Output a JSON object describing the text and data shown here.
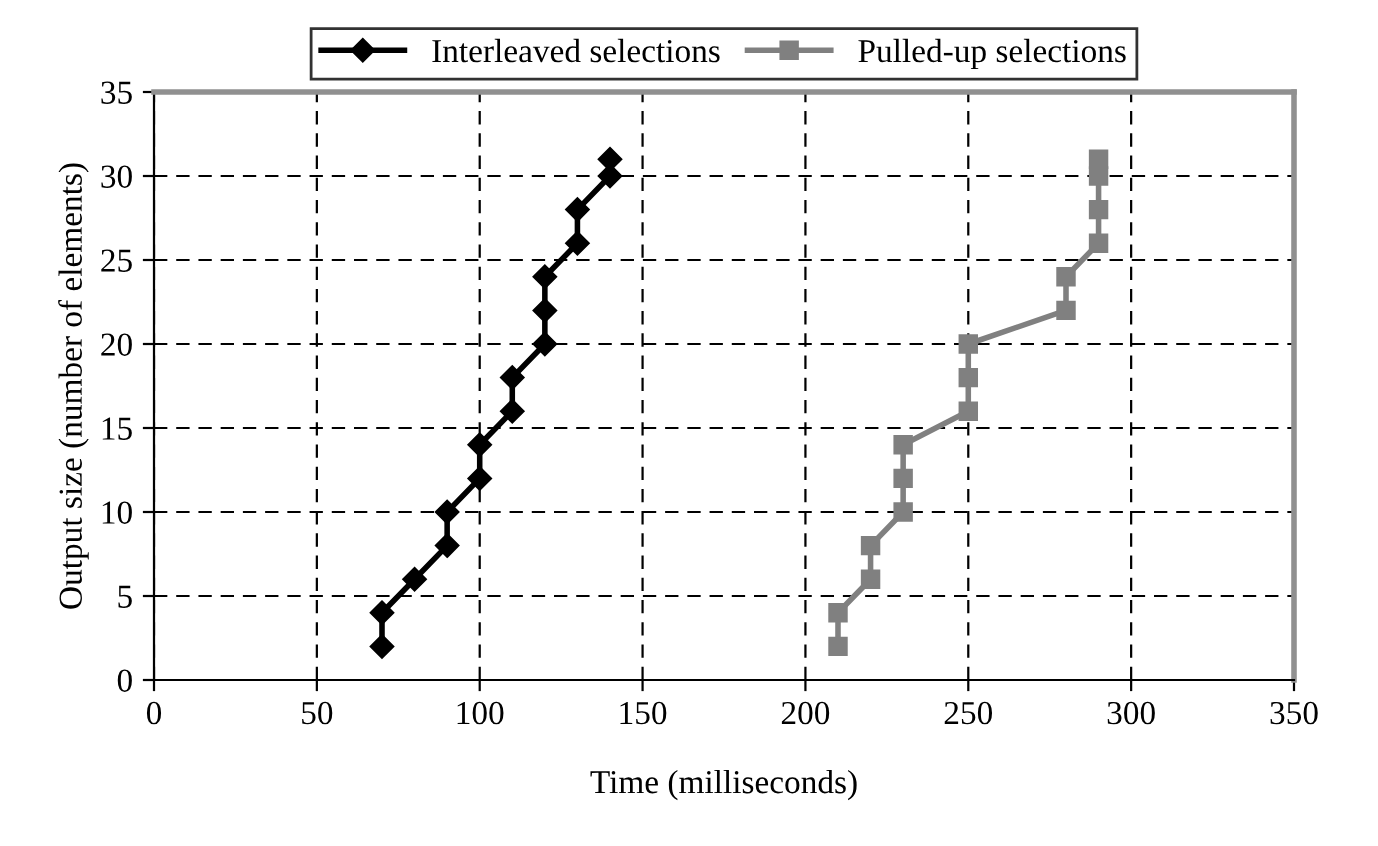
{
  "chart_data": {
    "type": "line",
    "xlabel": "Time (milliseconds)",
    "ylabel": "Output size (number of elements)",
    "series": [
      {
        "name": "Interleaved selections",
        "color": "#000000",
        "marker": "diamond",
        "x": [
          70,
          70,
          80,
          90,
          90,
          100,
          100,
          110,
          110,
          120,
          120,
          120,
          130,
          130,
          140,
          140
        ],
        "values": [
          2,
          4,
          6,
          8,
          10,
          12,
          14,
          16,
          18,
          20,
          22,
          24,
          26,
          28,
          30,
          31
        ]
      },
      {
        "name": "Pulled-up selections",
        "color": "#808080",
        "marker": "square",
        "x": [
          210,
          210,
          220,
          220,
          230,
          230,
          230,
          250,
          250,
          250,
          280,
          280,
          290,
          290,
          290,
          290
        ],
        "values": [
          2,
          4,
          6,
          8,
          10,
          12,
          14,
          16,
          18,
          20,
          22,
          24,
          26,
          28,
          30,
          31
        ]
      }
    ],
    "xlim": [
      0,
      350
    ],
    "xticks": [
      0,
      50,
      100,
      150,
      200,
      250,
      300,
      350
    ],
    "ylim": [
      0,
      35
    ],
    "yticks": [
      0,
      5,
      10,
      15,
      20,
      25,
      30,
      35
    ],
    "grid": true,
    "legend": "top",
    "line_style": "solid"
  }
}
